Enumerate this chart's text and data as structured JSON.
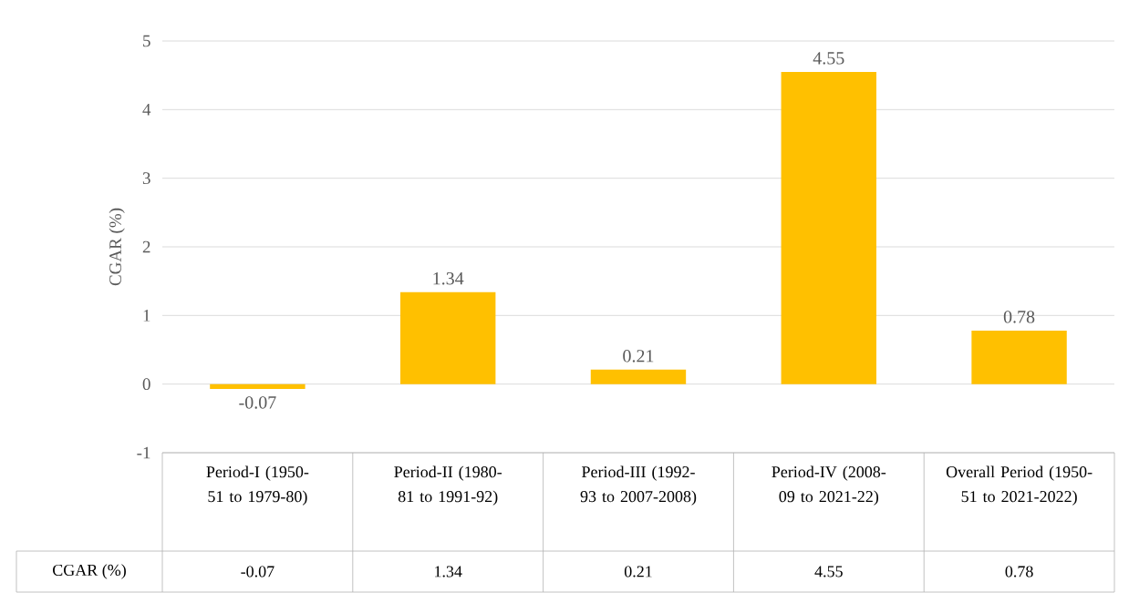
{
  "chart_data": {
    "type": "bar",
    "ylabel": "CGAR (%)",
    "categories": [
      "Period-I (1950-51 to 1979-80)",
      "Period-II (1980-81 to 1991-92)",
      "Period-III (1992-93 to 2007-2008)",
      "Period-IV (2008-09 to 2021-22)",
      "Overall Period (1950-51 to 2021-2022)"
    ],
    "series": [
      {
        "color": "#ffc000",
        "values": [
          -0.07,
          1.34,
          0.21,
          4.55,
          0.78
        ],
        "value_labels": [
          "-0.07",
          "1.34",
          "0.21",
          "4.55",
          "0.78"
        ]
      }
    ],
    "ylim": [
      -1,
      5
    ],
    "yticks": [
      -1,
      0,
      1,
      2,
      3,
      4,
      5
    ],
    "grid": "y",
    "annotations": [
      "CGAR (%)"
    ]
  }
}
